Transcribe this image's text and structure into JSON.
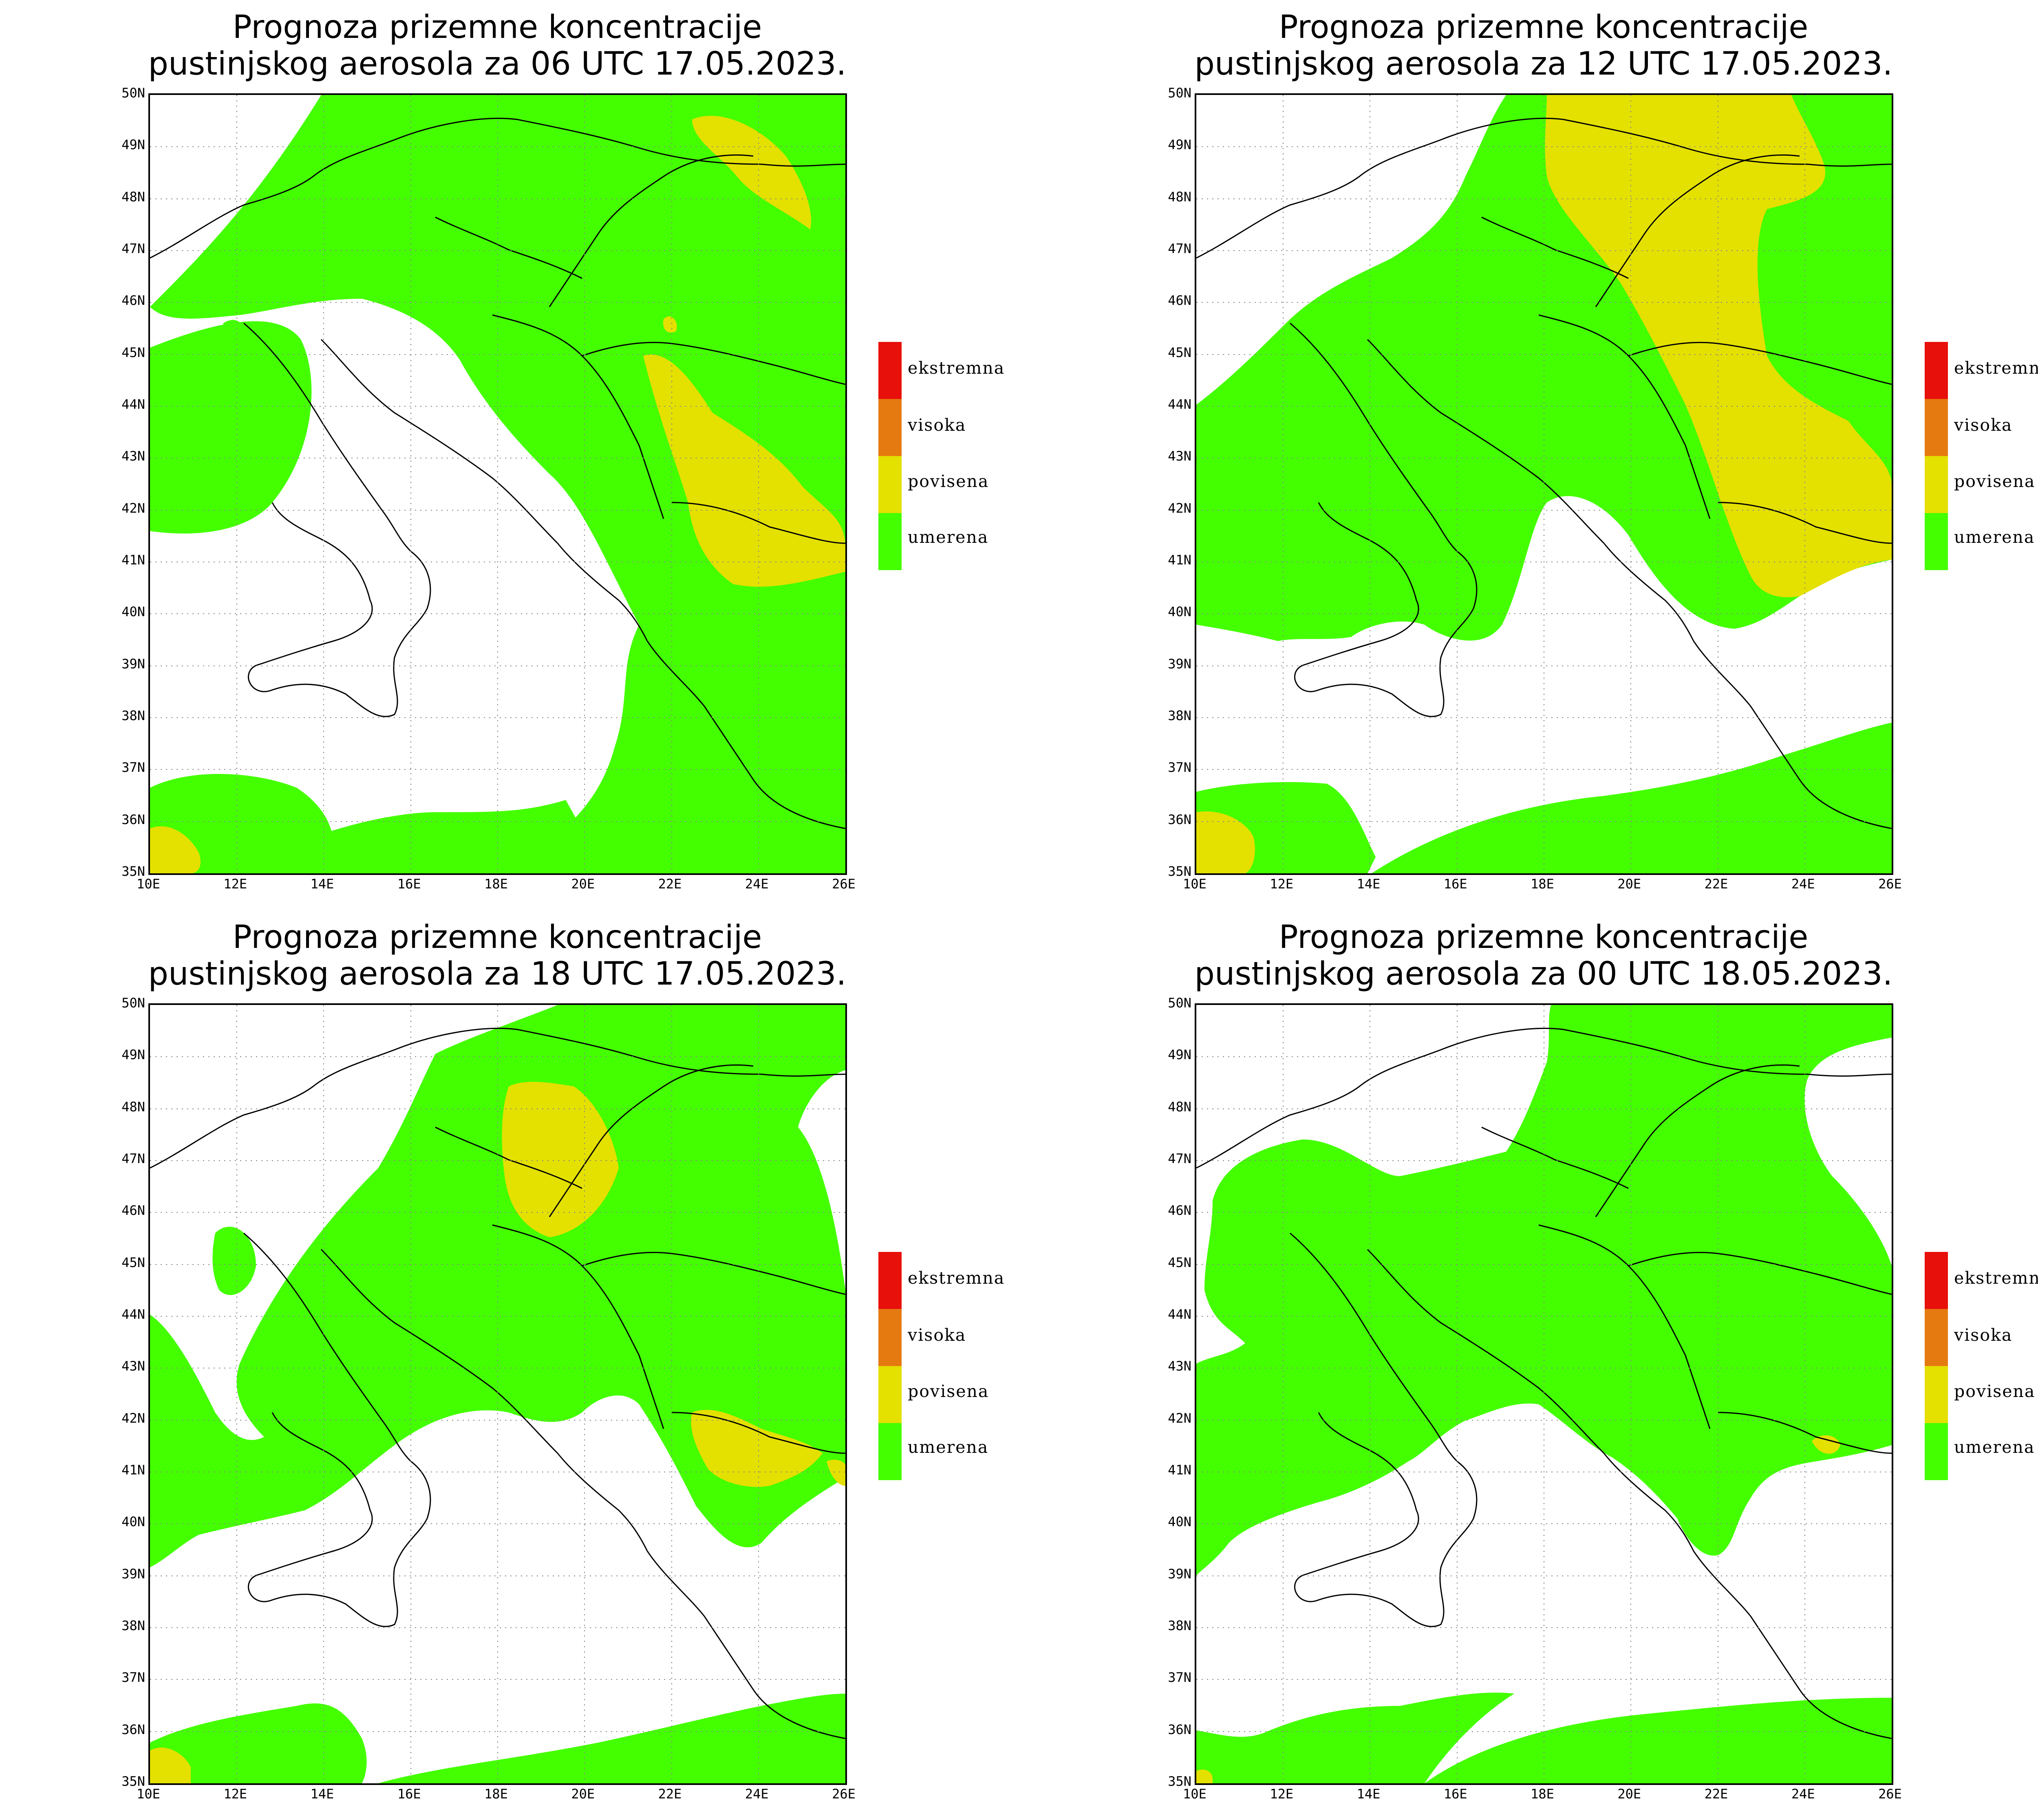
{
  "panels": [
    {
      "title_line1": "Prognoza prizemne koncentracije",
      "title_line2": "pustinjskog aerosola za 06 UTC 17.05.2023."
    },
    {
      "title_line1": "Prognoza prizemne koncentracije",
      "title_line2": "pustinjskog aerosola za 12 UTC 17.05.2023."
    },
    {
      "title_line1": "Prognoza prizemne koncentracije",
      "title_line2": "pustinjskog aerosola za 18 UTC 17.05.2023."
    },
    {
      "title_line1": "Prognoza prizemne koncentracije",
      "title_line2": "pustinjskog aerosola za 00 UTC 18.05.2023."
    }
  ],
  "lat_labels": [
    "50N",
    "49N",
    "48N",
    "47N",
    "46N",
    "45N",
    "44N",
    "43N",
    "42N",
    "41N",
    "40N",
    "39N",
    "38N",
    "37N",
    "36N",
    "35N"
  ],
  "lon_labels": [
    "10E",
    "12E",
    "14E",
    "16E",
    "18E",
    "20E",
    "22E",
    "24E",
    "26E"
  ],
  "map_extent": {
    "lon": [
      10,
      26
    ],
    "lat": [
      35,
      50
    ]
  },
  "legend": [
    {
      "label": "ekstremna",
      "color": "#e8100a"
    },
    {
      "label": "visoka",
      "color": "#e57a10"
    },
    {
      "label": "povisena",
      "color": "#e4e000"
    },
    {
      "label": "umerena",
      "color": "#44ff00"
    }
  ],
  "colors": {
    "background": "#ffffff",
    "moderate": "#44ff00",
    "elevated": "#e4e000",
    "grid": "#888888",
    "coast": "#000000"
  }
}
